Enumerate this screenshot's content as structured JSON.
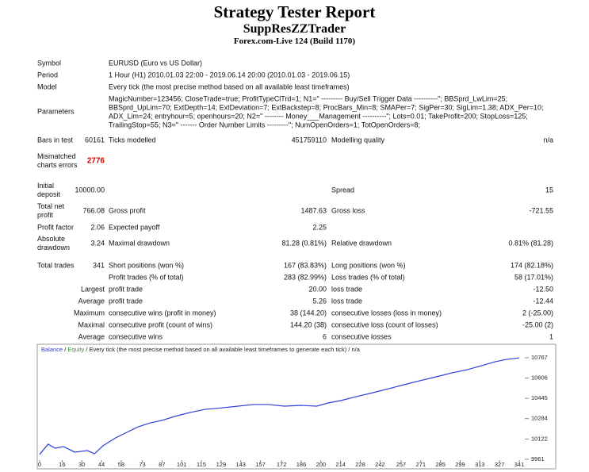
{
  "header": {
    "title": "Strategy Tester Report",
    "expert": "SuppResZZTrader",
    "server": "Forex.com-Live 124 (Build 1170)"
  },
  "table": {
    "rows": [
      [
        "Symbol",
        null,
        "EURUSD (Euro vs US Dollar)",
        null,
        null,
        null
      ],
      [
        "Period",
        null,
        "1 Hour (H1) 2010.01.03 22:00 - 2019.06.14 20:00 (2010.01.03 - 2019.06.15)",
        null,
        null,
        null
      ],
      [
        "Model",
        null,
        "Every tick (the most precise method based on all available least timeframes)",
        null,
        null,
        null
      ],
      [
        "Parameters",
        null,
        [
          "MagicNumber=123456; CloseTrade=true; ProfitTypeClTrd=1; N1=\" --------- Buy/Sell Trigger Data ----------\"; BBSprd_LwLim=25;",
          "BBSprd_UpLim=70; ExtDepth=14; ExtDeviation=7; ExtBackstep=8; ProcBars_Min=8; SMAPer=7; SigPer=30; SigLim=1.38; ADX_Per=10;",
          "ADX_Lim=24; entryhour=5; openhours=20; N2=\" -------- Money___Management ----------\"; Lots=0.01; TakeProfit=200; StopLoss=125;",
          "TrailingStop=55; N3=\" ------- Order Number Limits ---------\"; NumOpenOrders=1; TotOpenOrders=8;"
        ],
        null,
        null,
        null
      ],
      [
        "Bars in test",
        "60161",
        "Ticks modelled",
        "451759110",
        "Modelling quality",
        "n/a"
      ],
      [
        "Mismatched charts errors",
        "2776",
        null,
        null,
        null,
        null
      ],
      [
        "Initial deposit",
        "10000.00",
        null,
        null,
        "Spread",
        "15"
      ],
      [
        "Total net profit",
        "766.08",
        "Gross profit",
        "1487.63",
        "Gross loss",
        "-721.55"
      ],
      [
        "Profit factor",
        "2.06",
        "Expected payoff",
        "2.25",
        null,
        null
      ],
      [
        "Absolute drawdown",
        "3.24",
        "Maximal drawdown",
        "81.28 (0.81%)",
        "Relative drawdown",
        "0.81% (81.28)"
      ],
      [
        "Total trades",
        "341",
        "Short positions (won %)",
        "167 (83.83%)",
        "Long positions (won %)",
        "174 (82.18%)"
      ],
      [
        null,
        null,
        "Profit trades (% of total)",
        "283 (82.99%)",
        "Loss trades (% of total)",
        "58 (17.01%)"
      ],
      [
        null,
        "Largest",
        "profit trade",
        "20.00",
        "loss trade",
        "-12.50"
      ],
      [
        null,
        "Average",
        "profit trade",
        "5.26",
        "loss trade",
        "-12.44"
      ],
      [
        null,
        "Maximum",
        "consecutive wins (profit in money)",
        "38 (144.20)",
        "consecutive losses (loss in money)",
        "2 (-25.00)"
      ],
      [
        null,
        "Maximal",
        "consecutive profit (count of wins)",
        "144.20 (38)",
        "consecutive loss (count of losses)",
        "-25.00 (2)"
      ],
      [
        null,
        "Average",
        "consecutive wins",
        "6",
        "consecutive losses",
        "1"
      ]
    ]
  },
  "chart_data": {
    "type": "line",
    "legend": [
      "/",
      "Equity",
      "/ Every tick (the most precise method based on all available least timeframes to generate each tick) / n/a"
    ],
    "x": [
      0,
      6,
      11,
      17,
      25,
      34,
      39,
      45,
      54,
      62,
      70,
      79,
      87,
      96,
      107,
      118,
      130,
      141,
      152,
      163,
      174,
      186,
      197,
      205,
      214,
      225,
      237,
      248,
      259,
      270,
      282,
      293,
      304,
      316,
      324,
      332,
      341
    ],
    "series": [
      {
        "name": "Balance",
        "color": "#2b3fd6",
        "values": [
          10000,
          10081,
          10049,
          10062,
          10018,
          10030,
          10005,
          10068,
          10131,
          10175,
          10219,
          10251,
          10270,
          10301,
          10333,
          10358,
          10370,
          10383,
          10396,
          10396,
          10383,
          10389,
          10383,
          10408,
          10427,
          10458,
          10490,
          10521,
          10553,
          10584,
          10616,
          10647,
          10672,
          10710,
          10736,
          10754,
          10766
        ]
      }
    ],
    "xlim": [
      0,
      341
    ],
    "xticks": [
      0,
      16,
      30,
      44,
      58,
      73,
      87,
      101,
      115,
      129,
      143,
      157,
      172,
      186,
      200,
      214,
      228,
      242,
      257,
      271,
      285,
      299,
      313,
      327,
      341
    ],
    "ylim": [
      9961,
      10767
    ],
    "yticks": [
      9961,
      10122,
      10284,
      10445,
      10606,
      10767
    ]
  }
}
